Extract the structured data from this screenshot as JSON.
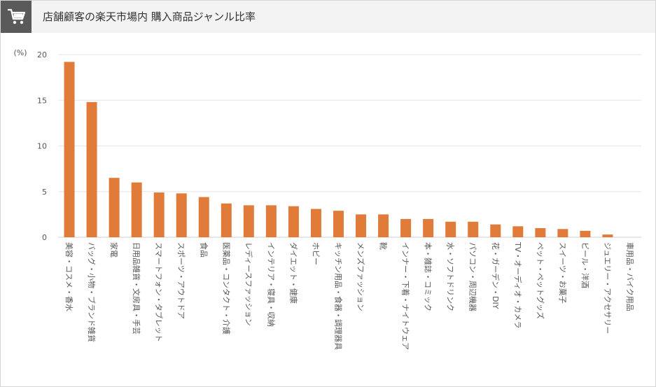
{
  "header": {
    "title": "店舗顧客の楽天市場内 購入商品ジャンル比率",
    "icon": "shopping-cart-icon"
  },
  "colors": {
    "bar": "#e07b39",
    "header_bg": "#f3f3f3",
    "icon_bg": "#5a5a5a",
    "grid": "#e6e6e6"
  },
  "chart_data": {
    "type": "bar",
    "title": "店舗顧客の楽天市場内 購入商品ジャンル比率",
    "ylabel": "(%)",
    "xlabel": "",
    "ylim": [
      0,
      20
    ],
    "yticks": [
      0,
      5,
      10,
      15,
      20
    ],
    "grid": true,
    "categories": [
      "美容・コスメ・香水",
      "バッグ・小物・ブランド雑貨",
      "家電",
      "日用品雑貨・文房具・手芸",
      "スマートフォン・タブレット",
      "スポーツ・アウトドア",
      "食品",
      "医薬品・コンタクト・介護",
      "レディースファッション",
      "インテリア・寝具・収納",
      "ダイエット・健康",
      "ホビー",
      "キッチン用品・食器・調理器具",
      "メンズファッション",
      "靴",
      "インナー・下着・ナイトウェア",
      "本・雑誌・コミック",
      "水・ソフトドリンク",
      "パソコン・周辺機器",
      "花・ガーデン・DIY",
      "TV・オーディオ・カメラ",
      "ペット・ペットグッズ",
      "スイーツ・お菓子",
      "ビール・洋酒",
      "ジュエリー・アクセサリー",
      "車用品・バイク用品"
    ],
    "values": [
      19.2,
      14.8,
      6.5,
      6.0,
      4.9,
      4.8,
      4.4,
      3.7,
      3.5,
      3.5,
      3.4,
      3.1,
      2.9,
      2.5,
      2.5,
      2.0,
      2.0,
      1.7,
      1.7,
      1.4,
      1.2,
      1.0,
      0.9,
      0.7,
      0.3,
      0.0
    ]
  }
}
